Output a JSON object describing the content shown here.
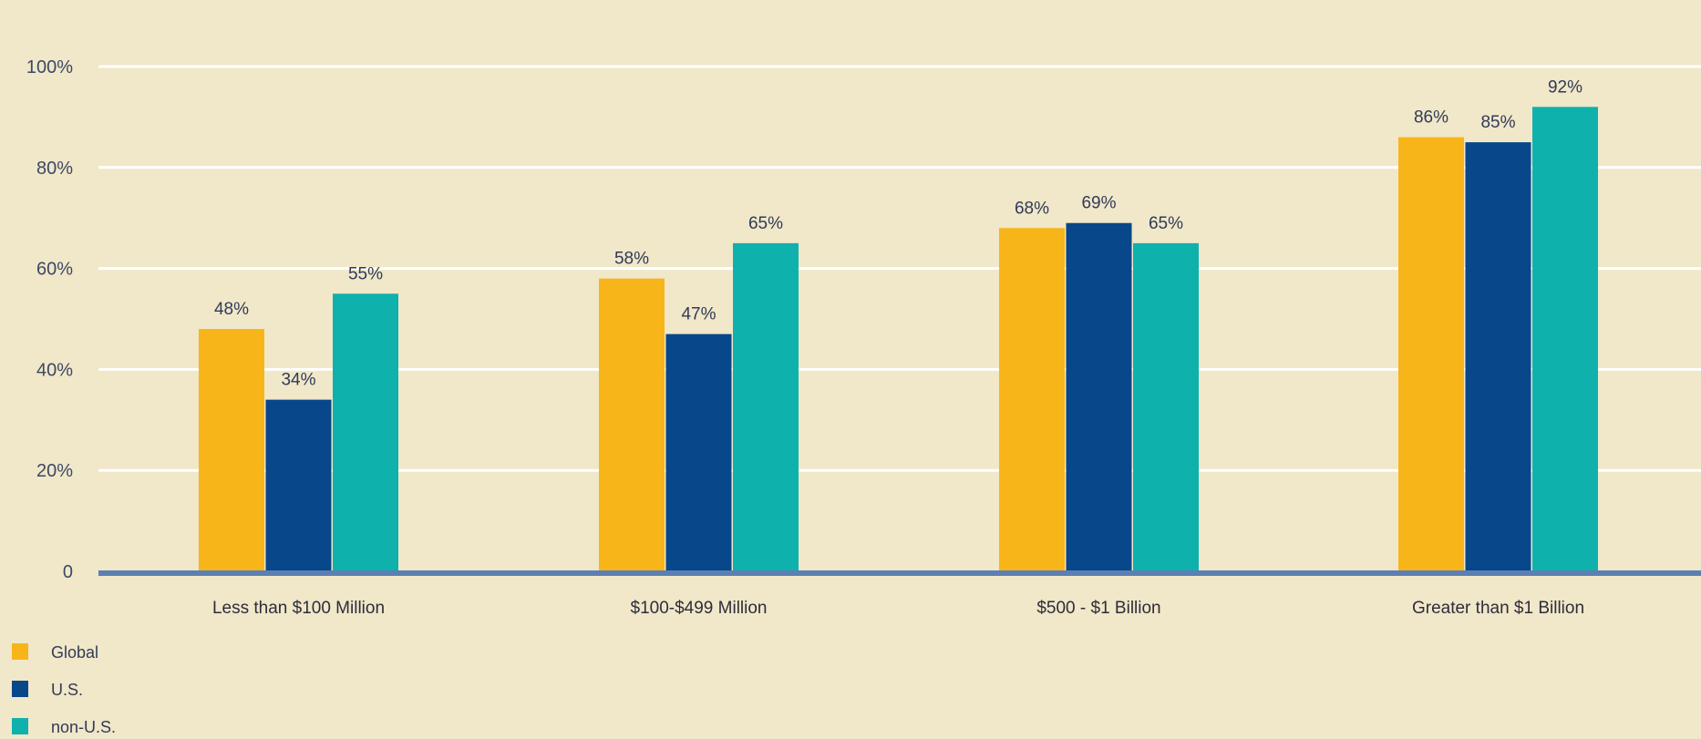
{
  "chart_data": {
    "type": "bar",
    "categories": [
      "Less than $100 Million",
      "$100-$499 Million",
      "$500 - $1 Billion",
      "Greater than $1 Billion"
    ],
    "series": [
      {
        "name": "Global",
        "values": [
          48,
          58,
          68,
          86
        ],
        "color": "#f7b519"
      },
      {
        "name": "U.S.",
        "values": [
          34,
          47,
          69,
          85
        ],
        "color": "#08478a"
      },
      {
        "name": "non-U.S.",
        "values": [
          55,
          65,
          65,
          92
        ],
        "color": "#0fb1ad"
      }
    ],
    "yticks": [
      {
        "value": 0,
        "label": "0"
      },
      {
        "value": 20,
        "label": "20%"
      },
      {
        "value": 40,
        "label": "40%"
      },
      {
        "value": 60,
        "label": "60%"
      },
      {
        "value": 80,
        "label": "80%"
      },
      {
        "value": 100,
        "label": "100%"
      }
    ],
    "data_label_suffix": "%",
    "ylim": [
      0,
      100
    ],
    "grid": true,
    "legend_position": "bottom-left",
    "colors": {
      "background": "#f1e7c9",
      "gridline": "#ffffff",
      "baseline": "#5c7fb3"
    }
  }
}
